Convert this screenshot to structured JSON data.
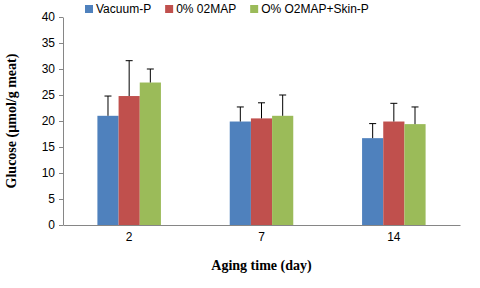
{
  "chart_data": {
    "type": "bar",
    "x_label": "Aging time (day)",
    "y_label": "Glucose (µmol/g meat)",
    "categories": [
      "2",
      "7",
      "14"
    ],
    "series": [
      {
        "name": "Vacuum-P",
        "color": "#4f81bd",
        "values": [
          21.0,
          19.9,
          16.7
        ],
        "errors": [
          3.8,
          2.8,
          2.8
        ]
      },
      {
        "name": "0% 02MAP",
        "color": "#c0504d",
        "values": [
          24.8,
          20.5,
          19.9
        ],
        "errors": [
          6.8,
          3.0,
          3.5
        ]
      },
      {
        "name": "O% O2MAP+Skin-P",
        "color": "#9bbb59",
        "values": [
          27.4,
          21.0,
          19.4
        ],
        "errors": [
          2.6,
          4.0,
          3.3
        ]
      }
    ],
    "ylim": [
      0,
      40
    ],
    "yticks": [
      0,
      5,
      10,
      15,
      20,
      25,
      30,
      35,
      40
    ],
    "grid": false,
    "legend": "top"
  }
}
